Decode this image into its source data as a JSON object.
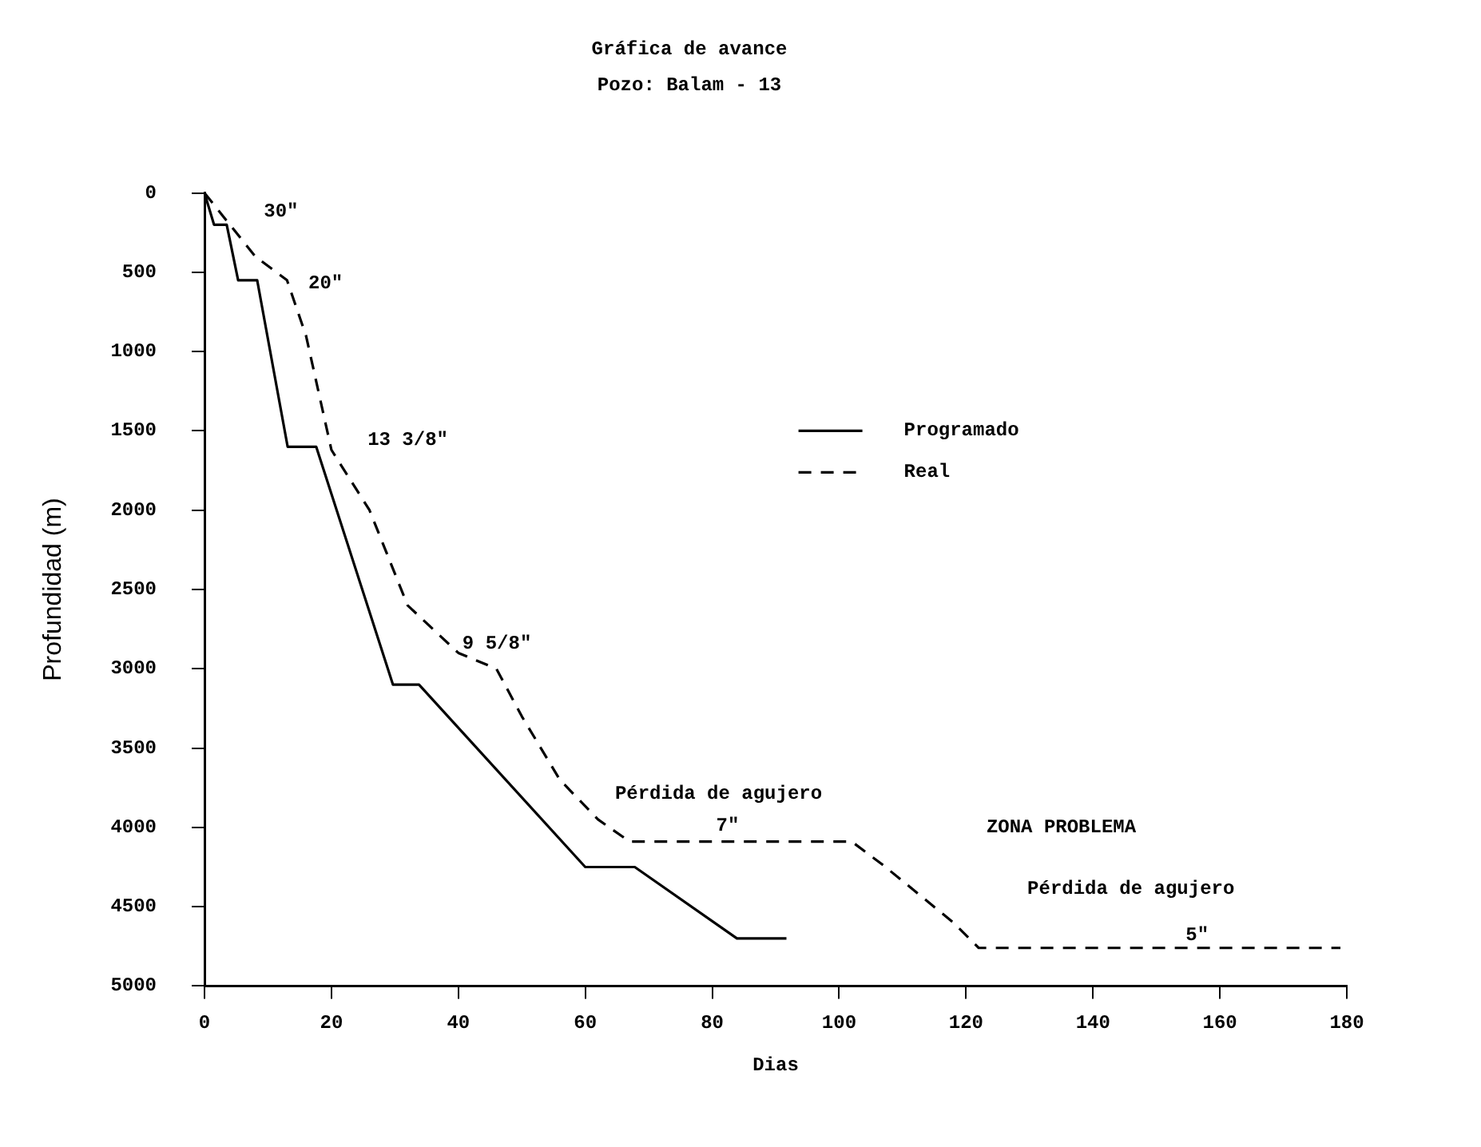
{
  "chart_data": {
    "type": "line",
    "title": "Gráfica de avance",
    "subtitle": "Pozo: Balam - 13",
    "xlabel": "Dias",
    "ylabel": "Profundidad (m)",
    "xlim": [
      0,
      180
    ],
    "xticks": [
      0,
      20,
      40,
      60,
      80,
      100,
      120,
      140,
      160,
      180
    ],
    "ylim": [
      5000,
      0
    ],
    "yticks": [
      0,
      500,
      1000,
      1500,
      2000,
      2500,
      3000,
      3500,
      4000,
      4500,
      5000
    ],
    "grid": false,
    "legend": "right",
    "marker": "none",
    "series": [
      {
        "name": "Programado",
        "color": "#000000",
        "line_style": "solid",
        "x": [
          0,
          1.5,
          3.5,
          5.3,
          8.3,
          13.1,
          17.6,
          29.7,
          33.8,
          60,
          67.8,
          83.9,
          91.7
        ],
        "values": [
          0,
          200,
          200,
          550,
          550,
          1600,
          1600,
          3100,
          3100,
          4250,
          4250,
          4700,
          4700
        ]
      },
      {
        "name": "Real",
        "color": "#000000",
        "line_style": "dashed",
        "x": [
          0,
          3,
          8,
          13,
          16,
          20,
          26,
          32,
          40,
          46,
          50,
          56,
          62,
          67,
          102,
          107,
          118,
          122,
          179
        ],
        "values": [
          0,
          150,
          400,
          550,
          900,
          1620,
          2000,
          2600,
          2900,
          3000,
          3300,
          3700,
          3950,
          4090,
          4090,
          4240,
          4600,
          4760,
          4760
        ]
      }
    ],
    "annotations": [
      "30\"",
      "20\"",
      "13 3/8\"",
      "9 5/8\"",
      "Pérdida de agujero",
      "7\"",
      "ZONA PROBLEMA",
      "Pérdida de agujero",
      "5\""
    ]
  }
}
